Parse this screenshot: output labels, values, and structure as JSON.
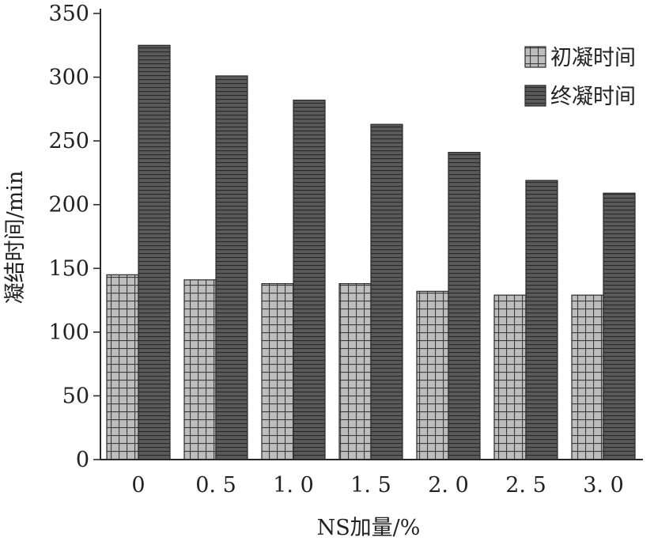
{
  "chart_data": {
    "type": "bar",
    "title": "",
    "xlabel": "NS加量/%",
    "ylabel": "凝结时间/min",
    "categories": [
      "0",
      "0.5",
      "1.0",
      "1.5",
      "2.0",
      "2.5",
      "3.0"
    ],
    "category_display": [
      "0",
      "0. 5",
      "1. 0",
      "1. 5",
      "2. 0",
      "2. 5",
      "3. 0"
    ],
    "series": [
      {
        "name": "初凝时间",
        "values": [
          145,
          141,
          138,
          138,
          132,
          129,
          129
        ],
        "pattern": "grid",
        "color": "#b9b9b9"
      },
      {
        "name": "终凝时间",
        "values": [
          325,
          301,
          282,
          263,
          241,
          219,
          209
        ],
        "pattern": "hlines",
        "color": "#4a4a4a"
      }
    ],
    "ylim": [
      0,
      350
    ],
    "yticks": [
      0,
      50,
      100,
      150,
      200,
      250,
      300,
      350
    ],
    "grid": false,
    "legend_position": "top-right"
  }
}
